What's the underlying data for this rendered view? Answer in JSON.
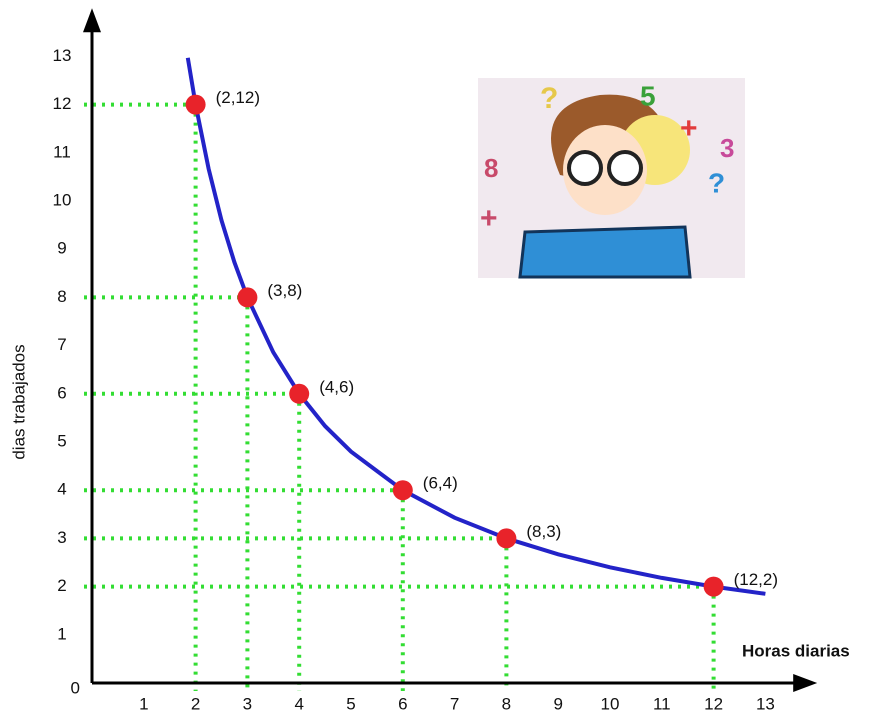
{
  "chart_data": {
    "type": "line",
    "x_label": "Horas diarias",
    "y_label": "dias trabajados",
    "xlim": [
      0,
      14
    ],
    "ylim": [
      0,
      14
    ],
    "xticks": [
      0,
      1,
      2,
      3,
      4,
      5,
      6,
      7,
      8,
      9,
      10,
      11,
      12,
      13
    ],
    "yticks": [
      1,
      2,
      3,
      4,
      5,
      6,
      7,
      8,
      9,
      10,
      11,
      12,
      13
    ],
    "guides": true,
    "guide_color": "#33dd33",
    "curve": {
      "color": "#2323c8",
      "x": [
        1.85,
        2,
        2.25,
        2.5,
        2.75,
        3,
        3.5,
        4,
        4.5,
        5,
        6,
        7,
        8,
        9,
        10,
        11,
        12,
        13
      ],
      "values": [
        12.97,
        12,
        10.67,
        9.6,
        8.73,
        8,
        6.86,
        6,
        5.33,
        4.8,
        4,
        3.43,
        3,
        2.67,
        2.4,
        2.18,
        2,
        1.85
      ]
    },
    "points": {
      "color": "#e8232a",
      "x": [
        2,
        3,
        4,
        6,
        8,
        12
      ],
      "values": [
        12,
        8,
        6,
        4,
        3,
        2
      ],
      "value_labels": [
        "(2,12)",
        "(3,8)",
        "(4,6)",
        "(6,4)",
        "(8,3)",
        "(12,2)"
      ]
    }
  }
}
